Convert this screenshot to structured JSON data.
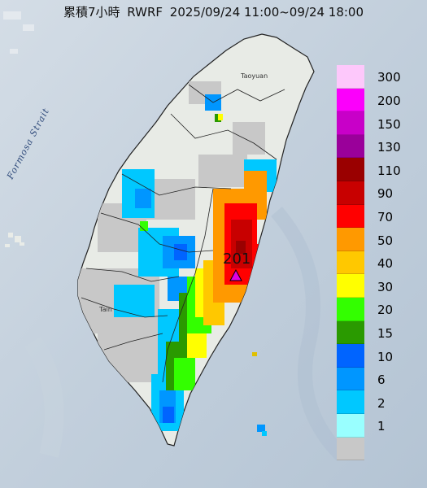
{
  "title": {
    "prefix": "累積7小時",
    "product": "RWRF",
    "period": "2025/09/24 11:00~09/24 18:00"
  },
  "map_labels": {
    "strait": "Formosa Strait",
    "city_north": "Taoyuan",
    "city_south": "Tain"
  },
  "max_marker": {
    "value": "201",
    "symbol_color": "#e000e0"
  },
  "legend": {
    "levels": [
      {
        "label": "300",
        "color": "#fdc8fb"
      },
      {
        "label": "200",
        "color": "#fb00fb"
      },
      {
        "label": "150",
        "color": "#c800c8"
      },
      {
        "label": "130",
        "color": "#9a009a"
      },
      {
        "label": "110",
        "color": "#9a0000"
      },
      {
        "label": "90",
        "color": "#c80000"
      },
      {
        "label": "70",
        "color": "#ff0000"
      },
      {
        "label": "50",
        "color": "#ff9900"
      },
      {
        "label": "40",
        "color": "#ffc800"
      },
      {
        "label": "30",
        "color": "#ffff00"
      },
      {
        "label": "20",
        "color": "#33ff00"
      },
      {
        "label": "15",
        "color": "#2a9a00"
      },
      {
        "label": "10",
        "color": "#0064ff"
      },
      {
        "label": "6",
        "color": "#0096ff"
      },
      {
        "label": "2",
        "color": "#00c8ff"
      },
      {
        "label": "1",
        "color": "#99ffff"
      },
      {
        "label": "",
        "color": "#c8c8c8"
      }
    ]
  }
}
